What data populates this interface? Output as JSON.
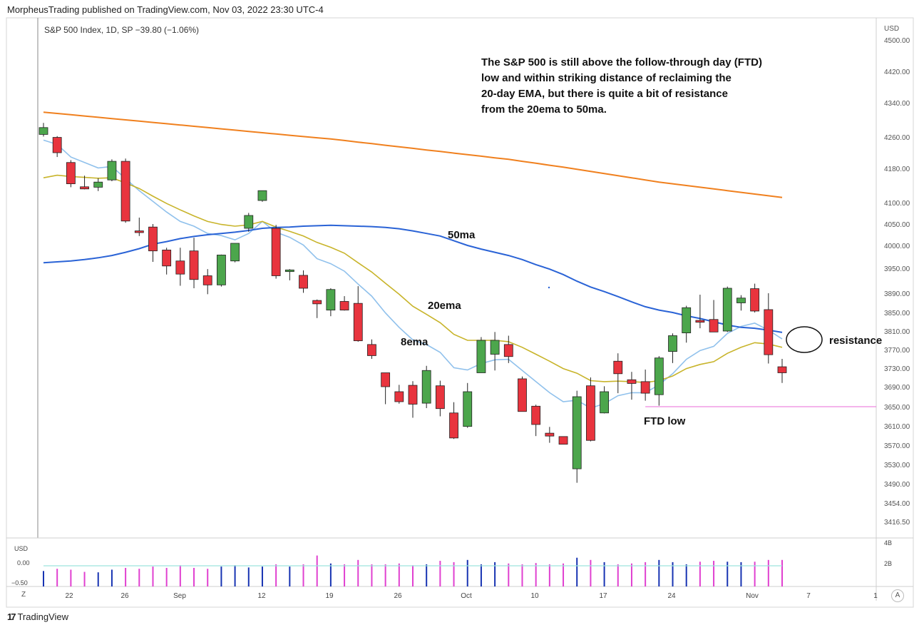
{
  "header": {
    "published": "MorpheusTrading published on TradingView.com, Nov 03, 2022 23:30 UTC-4",
    "legend": "S&P 500 Index, 1D, SP  −39.80 (−1.06%)"
  },
  "footer": {
    "logo_text": "TradingView",
    "logo_icon": "tradingview-logo-icon"
  },
  "buttons": {
    "zoom": "Z",
    "auto": "A"
  },
  "chart_data": {
    "type": "candlestick",
    "price_axis": {
      "currency": "USD",
      "ticks": [
        "4500.00",
        "4420.00",
        "4340.00",
        "4260.00",
        "4180.00",
        "4100.00",
        "4050.00",
        "4000.00",
        "3950.00",
        "3890.00",
        "3850.00",
        "3810.00",
        "3770.00",
        "3730.00",
        "3690.00",
        "3650.00",
        "3610.00",
        "3570.00",
        "3530.00",
        "3490.00",
        "3454.00",
        "3416.50"
      ]
    },
    "volume_axis": {
      "left_label": "USD",
      "left_ticks": [
        "0.00",
        "−0.50"
      ],
      "right_ticks": [
        "4B",
        "2B"
      ]
    },
    "x_axis": {
      "ticks": [
        "22",
        "26",
        "Sep",
        "12",
        "19",
        "26",
        "Oct",
        "10",
        "17",
        "24",
        "Nov",
        "7",
        "1"
      ]
    },
    "candles": [
      {
        "date": "Aug 19",
        "o": 4266,
        "h": 4293,
        "l": 4261,
        "c": 4282
      },
      {
        "date": "Aug 22",
        "o": 4259,
        "h": 4262,
        "l": 4209,
        "c": 4220
      },
      {
        "date": "Aug 23",
        "o": 4195,
        "h": 4201,
        "l": 4136,
        "c": 4144
      },
      {
        "date": "Aug 24",
        "o": 4137,
        "h": 4163,
        "l": 4131,
        "c": 4132
      },
      {
        "date": "Aug 25",
        "o": 4136,
        "h": 4157,
        "l": 4127,
        "c": 4148
      },
      {
        "date": "Aug 26",
        "o": 4153,
        "h": 4203,
        "l": 4150,
        "c": 4198
      },
      {
        "date": "Aug 29",
        "o": 4198,
        "h": 4205,
        "l": 4053,
        "c": 4057
      },
      {
        "date": "Aug 30",
        "o": 4034,
        "h": 4065,
        "l": 4022,
        "c": 4030
      },
      {
        "date": "Aug 31",
        "o": 4043,
        "h": 4050,
        "l": 3964,
        "c": 3988
      },
      {
        "date": "Sep 01",
        "o": 3990,
        "h": 3995,
        "l": 3935,
        "c": 3955
      },
      {
        "date": "Sep 02",
        "o": 3966,
        "h": 3995,
        "l": 3908,
        "c": 3936
      },
      {
        "date": "Sep 06",
        "o": 3988,
        "h": 4018,
        "l": 3902,
        "c": 3923
      },
      {
        "date": "Sep 07",
        "o": 3932,
        "h": 3948,
        "l": 3888,
        "c": 3910
      },
      {
        "date": "Sep 08",
        "o": 3910,
        "h": 3980,
        "l": 3906,
        "c": 3979
      },
      {
        "date": "Sep 09",
        "o": 3966,
        "h": 4000,
        "l": 3963,
        "c": 4005
      },
      {
        "date": "Sep 12",
        "o": 4040,
        "h": 4076,
        "l": 4032,
        "c": 4070
      },
      {
        "date": "Sep 13",
        "o": 4105,
        "h": 4125,
        "l": 4102,
        "c": 4128
      },
      {
        "date": "Sep 14",
        "o": 4040,
        "h": 4048,
        "l": 3925,
        "c": 3932
      },
      {
        "date": "Sep 15",
        "o": 3942,
        "h": 3948,
        "l": 3921,
        "c": 3946
      },
      {
        "date": "Sep 16",
        "o": 3933,
        "h": 3945,
        "l": 3891,
        "c": 3902
      },
      {
        "date": "Sep 19",
        "o": 3875,
        "h": 3877,
        "l": 3838,
        "c": 3868
      },
      {
        "date": "Sep 20",
        "o": 3855,
        "h": 3902,
        "l": 3842,
        "c": 3899
      },
      {
        "date": "Sep 21",
        "o": 3873,
        "h": 3884,
        "l": 3854,
        "c": 3855
      },
      {
        "date": "Sep 22",
        "o": 3869,
        "h": 3907,
        "l": 3787,
        "c": 3789
      },
      {
        "date": "Sep 23",
        "o": 3781,
        "h": 3792,
        "l": 3750,
        "c": 3757
      },
      {
        "date": "Sep 26",
        "o": 3720,
        "h": 3720,
        "l": 3655,
        "c": 3690
      },
      {
        "date": "Sep 27",
        "o": 3680,
        "h": 3694,
        "l": 3656,
        "c": 3660
      },
      {
        "date": "Sep 28",
        "o": 3693,
        "h": 3702,
        "l": 3627,
        "c": 3655
      },
      {
        "date": "Sep 29",
        "o": 3657,
        "h": 3735,
        "l": 3647,
        "c": 3725
      },
      {
        "date": "Sep 30",
        "o": 3692,
        "h": 3703,
        "l": 3630,
        "c": 3646
      },
      {
        "date": "Oct 03",
        "o": 3637,
        "h": 3659,
        "l": 3583,
        "c": 3585
      },
      {
        "date": "Oct 04",
        "o": 3609,
        "h": 3698,
        "l": 3606,
        "c": 3680
      },
      {
        "date": "Oct 05",
        "o": 3720,
        "h": 3797,
        "l": 3720,
        "c": 3790
      },
      {
        "date": "Oct 06",
        "o": 3760,
        "h": 3808,
        "l": 3725,
        "c": 3790
      },
      {
        "date": "Oct 07",
        "o": 3781,
        "h": 3800,
        "l": 3741,
        "c": 3755
      },
      {
        "date": "Oct 10",
        "o": 3707,
        "h": 3712,
        "l": 3640,
        "c": 3640
      },
      {
        "date": "Oct 11",
        "o": 3651,
        "h": 3654,
        "l": 3589,
        "c": 3613
      },
      {
        "date": "Oct 12",
        "o": 3595,
        "h": 3608,
        "l": 3575,
        "c": 3589
      },
      {
        "date": "Oct 13",
        "o": 3588,
        "h": 3583,
        "l": 3575,
        "c": 3572
      },
      {
        "date": "Oct 14",
        "o": 3521,
        "h": 3682,
        "l": 3492,
        "c": 3670
      },
      {
        "date": "Oct 17",
        "o": 3692,
        "h": 3710,
        "l": 3578,
        "c": 3580
      },
      {
        "date": "Oct 18",
        "o": 3637,
        "h": 3691,
        "l": 3636,
        "c": 3680
      },
      {
        "date": "Oct 19",
        "o": 3745,
        "h": 3762,
        "l": 3677,
        "c": 3718
      },
      {
        "date": "Oct 20",
        "o": 3705,
        "h": 3722,
        "l": 3664,
        "c": 3697
      },
      {
        "date": "Oct 21",
        "o": 3701,
        "h": 3727,
        "l": 3662,
        "c": 3677
      },
      {
        "date": "Oct 24",
        "o": 3674,
        "h": 3756,
        "l": 3652,
        "c": 3752
      },
      {
        "date": "Oct 25",
        "o": 3766,
        "h": 3805,
        "l": 3741,
        "c": 3800
      },
      {
        "date": "Oct 26",
        "o": 3806,
        "h": 3864,
        "l": 3785,
        "c": 3860
      },
      {
        "date": "Oct 27",
        "o": 3833,
        "h": 3887,
        "l": 3816,
        "c": 3829
      },
      {
        "date": "Oct 28",
        "o": 3835,
        "h": 3876,
        "l": 3808,
        "c": 3808
      },
      {
        "date": "Oct 31",
        "o": 3810,
        "h": 3906,
        "l": 3808,
        "c": 3902
      },
      {
        "date": "Nov 01",
        "o": 3870,
        "h": 3886,
        "l": 3854,
        "c": 3880
      },
      {
        "date": "Nov 02",
        "o": 3901,
        "h": 3913,
        "l": 3850,
        "c": 3853
      },
      {
        "date": "Nov 03",
        "o": 3856,
        "h": 3890,
        "l": 3740,
        "c": 3759
      },
      {
        "date": "Nov 04",
        "o": 3733,
        "h": 3750,
        "l": 3698,
        "c": 3720
      }
    ],
    "series": [
      {
        "name": "8ema",
        "color": "#90c1ec",
        "values": [
          4252,
          4241,
          4209,
          4195,
          4181,
          4185,
          4156,
          4128,
          4103,
          4078,
          4056,
          4045,
          4028,
          4023,
          4013,
          4028,
          4056,
          4031,
          4019,
          4001,
          3971,
          3960,
          3943,
          3912,
          3884,
          3849,
          3818,
          3791,
          3781,
          3764,
          3731,
          3726,
          3740,
          3748,
          3749,
          3725,
          3701,
          3678,
          3660,
          3663,
          3647,
          3656,
          3672,
          3678,
          3678,
          3694,
          3718,
          3749,
          3768,
          3777,
          3805,
          3820,
          3827,
          3812,
          3793
        ]
      },
      {
        "name": "20ema",
        "color": "#c8b42a",
        "values": [
          4158,
          4164,
          4161,
          4159,
          4157,
          4158,
          4146,
          4133,
          4115,
          4098,
          4083,
          4069,
          4056,
          4049,
          4045,
          4048,
          4056,
          4043,
          4033,
          4022,
          4007,
          3996,
          3983,
          3962,
          3941,
          3914,
          3888,
          3863,
          3846,
          3828,
          3803,
          3790,
          3790,
          3790,
          3787,
          3775,
          3760,
          3745,
          3729,
          3719,
          3703,
          3701,
          3702,
          3701,
          3699,
          3703,
          3713,
          3729,
          3738,
          3744,
          3762,
          3775,
          3785,
          3782,
          3775
        ]
      },
      {
        "name": "50ma",
        "color": "#2a63d6",
        "values": [
          3962,
          3964,
          3966,
          3969,
          3973,
          3978,
          3985,
          3993,
          4003,
          4009,
          4016,
          4021,
          4025,
          4028,
          4031,
          4035,
          4040,
          4042,
          4043,
          4045,
          4046,
          4047,
          4046,
          4045,
          4044,
          4042,
          4039,
          4034,
          4028,
          4022,
          4011,
          4000,
          3992,
          3985,
          3978,
          3969,
          3958,
          3948,
          3935,
          3919,
          3905,
          3894,
          3883,
          3872,
          3862,
          3855,
          3850,
          3843,
          3837,
          3830,
          3823,
          3818,
          3816,
          3812,
          3807
        ]
      },
      {
        "name": "200ma",
        "color": "#f0801e",
        "values": [
          4318,
          4315,
          4312,
          4309,
          4306,
          4303,
          4300,
          4297,
          4294,
          4291,
          4288,
          4285,
          4282,
          4279,
          4276,
          4273,
          4270,
          4267,
          4264,
          4261,
          4258,
          4255,
          4251,
          4247,
          4243,
          4239,
          4235,
          4231,
          4227,
          4223,
          4219,
          4215,
          4211,
          4207,
          4203,
          4198,
          4193,
          4188,
          4183,
          4178,
          4173,
          4168,
          4163,
          4158,
          4153,
          4148,
          4144,
          4140,
          4136,
          4132,
          4128,
          4124,
          4120,
          4116,
          4112
        ]
      }
    ],
    "volume_ratio": [
      0.35,
      0.4,
      0.38,
      0.33,
      0.32,
      0.38,
      0.42,
      0.4,
      0.45,
      0.42,
      0.48,
      0.42,
      0.4,
      0.45,
      0.48,
      0.43,
      0.45,
      0.5,
      0.45,
      0.5,
      0.7,
      0.52,
      0.5,
      0.6,
      0.5,
      0.5,
      0.52,
      0.48,
      0.5,
      0.58,
      0.55,
      0.6,
      0.5,
      0.55,
      0.52,
      0.5,
      0.53,
      0.5,
      0.52,
      0.65,
      0.6,
      0.55,
      0.5,
      0.52,
      0.55,
      0.6,
      0.55,
      0.5,
      0.56,
      0.58,
      0.56,
      0.55,
      0.56,
      0.6,
      0.6
    ],
    "volume_up_color": "#1733b2",
    "volume_down_color": "#e040d0",
    "annotations": {
      "main_note": [
        "The S&P 500 is still above the follow-through day (FTD)",
        "low and within striking distance of reclaiming the",
        " 20-day EMA, but there is quite a bit of resistance",
        "from the 20ema to 50ma."
      ],
      "label_50ma": "50ma",
      "label_20ema": "20ema",
      "label_8ema": "8ema",
      "ftd_low": "FTD low",
      "resistance": "resistance",
      "ftd_level": 3650
    },
    "colors": {
      "up": "#4ca64c",
      "down": "#e8343e",
      "ftd_line": "#e86ad8"
    }
  }
}
